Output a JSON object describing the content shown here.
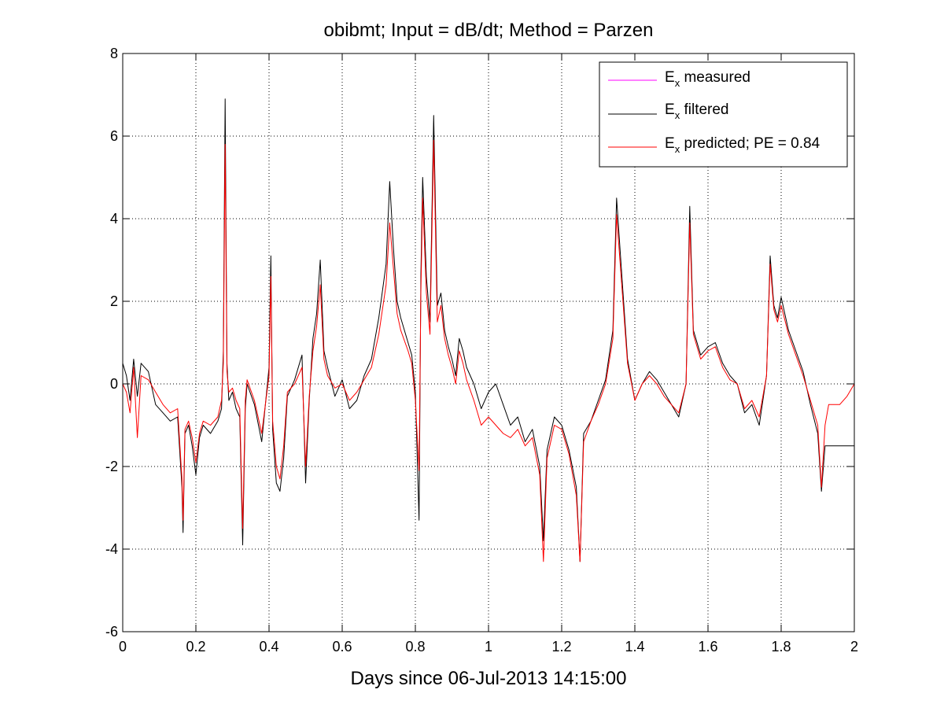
{
  "chart_data": {
    "type": "line",
    "title": "obibmt; Input = dB/dt; Method = Parzen",
    "xlabel": "Days since 06-Jul-2013 14:15:00",
    "ylabel": "",
    "xlim": [
      0,
      2
    ],
    "ylim": [
      -6,
      8
    ],
    "xticks": [
      0,
      0.2,
      0.4,
      0.6,
      0.8,
      1,
      1.2,
      1.4,
      1.6,
      1.8,
      2
    ],
    "xtick_labels": [
      "0",
      "0.2",
      "0.4",
      "0.6",
      "0.8",
      "1",
      "1.2",
      "1.4",
      "1.6",
      "1.8",
      "2"
    ],
    "yticks": [
      -6,
      -4,
      -2,
      0,
      2,
      4,
      6,
      8
    ],
    "ytick_labels": [
      "-6",
      "-4",
      "-2",
      "0",
      "2",
      "4",
      "6",
      "8"
    ],
    "grid": true,
    "legend_position": "top-right",
    "legend": [
      {
        "main": "E",
        "sub": "x",
        "rest": " measured",
        "color": "#ff00ff"
      },
      {
        "main": "E",
        "sub": "x",
        "rest": " filtered",
        "color": "#000000"
      },
      {
        "main": "E",
        "sub": "x",
        "rest": " predicted; PE = 0.84",
        "color": "#ff0000"
      }
    ],
    "series": [
      {
        "color": "#000000",
        "x": [
          0,
          0.01,
          0.02,
          0.03,
          0.04,
          0.05,
          0.07,
          0.09,
          0.11,
          0.13,
          0.15,
          0.162,
          0.165,
          0.17,
          0.18,
          0.19,
          0.2,
          0.21,
          0.22,
          0.24,
          0.26,
          0.27,
          0.275,
          0.28,
          0.285,
          0.29,
          0.3,
          0.31,
          0.32,
          0.328,
          0.335,
          0.34,
          0.36,
          0.38,
          0.4,
          0.405,
          0.41,
          0.42,
          0.43,
          0.44,
          0.45,
          0.47,
          0.49,
          0.5,
          0.51,
          0.52,
          0.53,
          0.54,
          0.55,
          0.56,
          0.58,
          0.6,
          0.62,
          0.64,
          0.66,
          0.68,
          0.7,
          0.72,
          0.73,
          0.74,
          0.75,
          0.76,
          0.78,
          0.79,
          0.8,
          0.81,
          0.815,
          0.82,
          0.83,
          0.84,
          0.85,
          0.86,
          0.87,
          0.88,
          0.89,
          0.9,
          0.91,
          0.92,
          0.93,
          0.94,
          0.96,
          0.98,
          1.0,
          1.02,
          1.04,
          1.06,
          1.08,
          1.1,
          1.12,
          1.14,
          1.15,
          1.16,
          1.18,
          1.2,
          1.22,
          1.24,
          1.25,
          1.26,
          1.28,
          1.3,
          1.32,
          1.34,
          1.35,
          1.36,
          1.38,
          1.4,
          1.42,
          1.44,
          1.46,
          1.48,
          1.5,
          1.52,
          1.54,
          1.55,
          1.56,
          1.58,
          1.6,
          1.62,
          1.64,
          1.66,
          1.68,
          1.7,
          1.72,
          1.74,
          1.76,
          1.77,
          1.78,
          1.79,
          1.8,
          1.82,
          1.84,
          1.86,
          1.88,
          1.9,
          1.91,
          1.92,
          1.93,
          1.95,
          2.0
        ],
        "y": [
          0.5,
          0.2,
          -0.4,
          0.6,
          -0.3,
          0.5,
          0.3,
          -0.5,
          -0.7,
          -0.9,
          -0.8,
          -2.5,
          -3.6,
          -1.2,
          -1.0,
          -1.5,
          -2.2,
          -1.3,
          -1.0,
          -1.2,
          -0.9,
          -0.6,
          0.8,
          6.9,
          0.5,
          -0.4,
          -0.2,
          -0.6,
          -0.8,
          -3.9,
          -0.6,
          0.0,
          -0.5,
          -1.4,
          0.4,
          3.1,
          -1.1,
          -2.4,
          -2.6,
          -1.8,
          -0.3,
          0.1,
          0.7,
          -2.4,
          -0.4,
          1.1,
          1.7,
          3.0,
          0.8,
          0.4,
          -0.3,
          0.1,
          -0.6,
          -0.4,
          0.2,
          0.6,
          1.6,
          2.9,
          4.9,
          3.3,
          2.0,
          1.6,
          1.0,
          0.7,
          -0.2,
          -3.3,
          2.6,
          5.0,
          2.6,
          1.5,
          6.5,
          1.9,
          2.2,
          1.3,
          0.9,
          0.6,
          0.2,
          1.1,
          0.8,
          0.4,
          0.0,
          -0.6,
          -0.2,
          0.0,
          -0.5,
          -1.0,
          -0.8,
          -1.4,
          -1.1,
          -2.0,
          -3.8,
          -1.6,
          -0.8,
          -1.0,
          -1.6,
          -2.5,
          -4.3,
          -1.2,
          -0.9,
          -0.4,
          0.1,
          1.3,
          4.5,
          3.2,
          0.6,
          -0.4,
          0.0,
          0.3,
          0.1,
          -0.2,
          -0.5,
          -0.8,
          0.0,
          4.3,
          1.3,
          0.7,
          0.9,
          1.0,
          0.5,
          0.2,
          0.0,
          -0.7,
          -0.5,
          -1.0,
          0.2,
          3.1,
          1.9,
          1.6,
          2.1,
          1.3,
          0.8,
          0.3,
          -0.5,
          -1.2,
          -2.6,
          -1.5,
          -1.5,
          -1.5,
          -1.5
        ]
      },
      {
        "color": "#ff0000",
        "x": [
          0,
          0.01,
          0.02,
          0.03,
          0.04,
          0.05,
          0.07,
          0.09,
          0.11,
          0.13,
          0.15,
          0.162,
          0.165,
          0.17,
          0.18,
          0.19,
          0.2,
          0.21,
          0.22,
          0.24,
          0.26,
          0.27,
          0.275,
          0.28,
          0.285,
          0.29,
          0.3,
          0.31,
          0.32,
          0.328,
          0.335,
          0.34,
          0.36,
          0.38,
          0.4,
          0.405,
          0.41,
          0.42,
          0.43,
          0.44,
          0.45,
          0.47,
          0.49,
          0.5,
          0.51,
          0.52,
          0.53,
          0.54,
          0.55,
          0.56,
          0.58,
          0.6,
          0.62,
          0.64,
          0.66,
          0.68,
          0.7,
          0.72,
          0.73,
          0.74,
          0.75,
          0.76,
          0.78,
          0.79,
          0.8,
          0.81,
          0.815,
          0.82,
          0.83,
          0.84,
          0.85,
          0.86,
          0.87,
          0.88,
          0.89,
          0.9,
          0.91,
          0.92,
          0.93,
          0.94,
          0.96,
          0.98,
          1.0,
          1.02,
          1.04,
          1.06,
          1.08,
          1.1,
          1.12,
          1.14,
          1.15,
          1.16,
          1.18,
          1.2,
          1.22,
          1.24,
          1.25,
          1.26,
          1.28,
          1.3,
          1.32,
          1.34,
          1.35,
          1.36,
          1.38,
          1.4,
          1.42,
          1.44,
          1.46,
          1.48,
          1.5,
          1.52,
          1.54,
          1.55,
          1.56,
          1.58,
          1.6,
          1.62,
          1.64,
          1.66,
          1.68,
          1.7,
          1.72,
          1.74,
          1.76,
          1.77,
          1.78,
          1.79,
          1.8,
          1.82,
          1.84,
          1.86,
          1.88,
          1.9,
          1.91,
          1.92,
          1.93,
          1.95,
          1.96,
          1.98,
          2.0
        ],
        "y": [
          0.0,
          -0.2,
          -0.7,
          0.4,
          -1.3,
          0.2,
          0.1,
          -0.2,
          -0.5,
          -0.7,
          -0.6,
          -2.3,
          -3.3,
          -1.1,
          -0.9,
          -1.3,
          -1.9,
          -1.2,
          -0.9,
          -1.0,
          -0.8,
          -0.4,
          0.5,
          5.8,
          0.3,
          -0.2,
          -0.1,
          -0.4,
          -0.6,
          -3.5,
          -0.4,
          0.1,
          -0.4,
          -1.2,
          0.2,
          2.6,
          -0.9,
          -2.0,
          -2.3,
          -1.5,
          -0.2,
          0.0,
          0.4,
          -2.0,
          -0.3,
          0.8,
          1.4,
          2.4,
          0.6,
          0.2,
          -0.1,
          0.0,
          -0.4,
          -0.2,
          0.1,
          0.4,
          1.2,
          2.4,
          3.9,
          2.8,
          1.7,
          1.3,
          0.8,
          0.5,
          -0.4,
          -2.1,
          2.2,
          4.5,
          2.2,
          1.2,
          5.9,
          1.5,
          1.9,
          1.1,
          0.7,
          0.4,
          0.0,
          0.8,
          0.5,
          0.1,
          -0.4,
          -1.0,
          -0.8,
          -1.0,
          -1.2,
          -1.3,
          -1.1,
          -1.5,
          -1.3,
          -2.2,
          -4.3,
          -1.8,
          -1.0,
          -1.1,
          -1.7,
          -2.7,
          -4.3,
          -1.4,
          -0.9,
          -0.5,
          0.0,
          1.1,
          4.1,
          2.9,
          0.5,
          -0.4,
          0.0,
          0.2,
          0.0,
          -0.3,
          -0.5,
          -0.7,
          0.0,
          3.9,
          1.2,
          0.6,
          0.8,
          0.9,
          0.4,
          0.1,
          0.0,
          -0.6,
          -0.4,
          -0.8,
          0.2,
          2.9,
          1.8,
          1.5,
          1.9,
          1.2,
          0.7,
          0.2,
          -0.4,
          -1.0,
          -2.5,
          -1.0,
          -0.5,
          -0.5,
          -0.5,
          -0.3,
          0.0
        ]
      }
    ]
  }
}
